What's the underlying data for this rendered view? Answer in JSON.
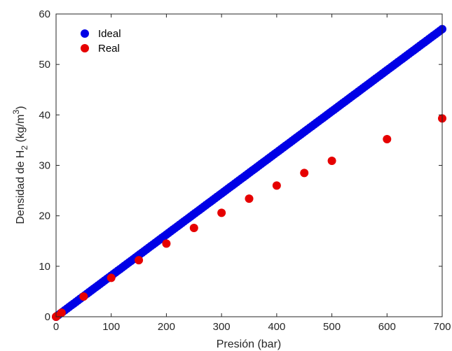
{
  "chart_data": {
    "type": "scatter",
    "xlabel": "Presión (bar)",
    "ylabel_main": "Densidad de H",
    "ylabel_sub": "2",
    "ylabel_unit_pre": " (kg/m",
    "ylabel_sup": "3",
    "ylabel_unit_post": ")",
    "xlim": [
      0,
      700
    ],
    "ylim": [
      0,
      60
    ],
    "xticks": [
      0,
      100,
      200,
      300,
      400,
      500,
      600,
      700
    ],
    "yticks": [
      0,
      10,
      20,
      30,
      40,
      50,
      60
    ],
    "grid": false,
    "legend_position": "top-left",
    "series": [
      {
        "name": "Ideal",
        "color": "#0000e6",
        "marker": "circle",
        "dense": true,
        "x_start": 0,
        "x_end": 700,
        "y_start": 0,
        "y_end": 57.0
      },
      {
        "name": "Real",
        "color": "#e60000",
        "marker": "circle",
        "x": [
          0,
          1,
          10,
          50,
          100,
          150,
          200,
          250,
          300,
          350,
          400,
          450,
          500,
          600,
          700
        ],
        "y": [
          0.0,
          0.1,
          0.8,
          4.0,
          7.7,
          11.2,
          14.5,
          17.6,
          20.6,
          23.4,
          26.0,
          28.5,
          30.9,
          35.2,
          39.3
        ]
      }
    ]
  }
}
